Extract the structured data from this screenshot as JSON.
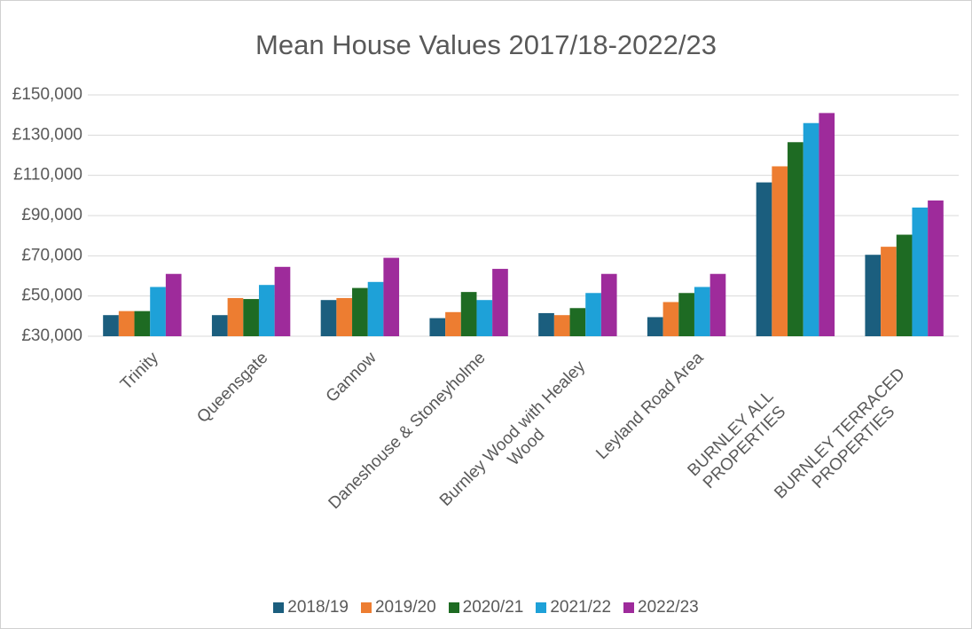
{
  "chart_data": {
    "type": "bar",
    "title": "Mean House Values 2017/18-2022/23",
    "categories": [
      "Trinity",
      "Queensgate",
      "Gannow",
      "Daneshouse & Stoneyholme",
      "Burnley Wood with Healey Wood",
      "Leyland Road Area",
      "BURNLEY ALL PROPERTIES",
      "BURNLEY TERRACED PROPERTIES"
    ],
    "series": [
      {
        "name": "2018/19",
        "color": "#1b5e7e",
        "values": [
          40500,
          40500,
          48000,
          39000,
          41500,
          39500,
          106500,
          70500
        ]
      },
      {
        "name": "2019/20",
        "color": "#ed7d31",
        "values": [
          42500,
          49000,
          49000,
          42000,
          40500,
          47000,
          114500,
          74500
        ]
      },
      {
        "name": "2020/21",
        "color": "#1e6b23",
        "values": [
          42500,
          48500,
          54000,
          52000,
          44000,
          51500,
          126500,
          80500
        ]
      },
      {
        "name": "2021/22",
        "color": "#1ea1d8",
        "values": [
          54500,
          55500,
          57000,
          48000,
          51500,
          54500,
          136000,
          94000
        ]
      },
      {
        "name": "2022/23",
        "color": "#9e2b9b",
        "values": [
          61000,
          64500,
          69000,
          63500,
          61000,
          61000,
          141000,
          97500
        ]
      }
    ],
    "ylim": [
      30000,
      150000
    ],
    "yticks": [
      {
        "value": 30000,
        "label": "£30,000"
      },
      {
        "value": 50000,
        "label": "£50,000"
      },
      {
        "value": 70000,
        "label": "£70,000"
      },
      {
        "value": 90000,
        "label": "£90,000"
      },
      {
        "value": 110000,
        "label": "£110,000"
      },
      {
        "value": 130000,
        "label": "£130,000"
      },
      {
        "value": 150000,
        "label": "£150,000"
      }
    ],
    "grid": true,
    "legend": "bottom"
  }
}
